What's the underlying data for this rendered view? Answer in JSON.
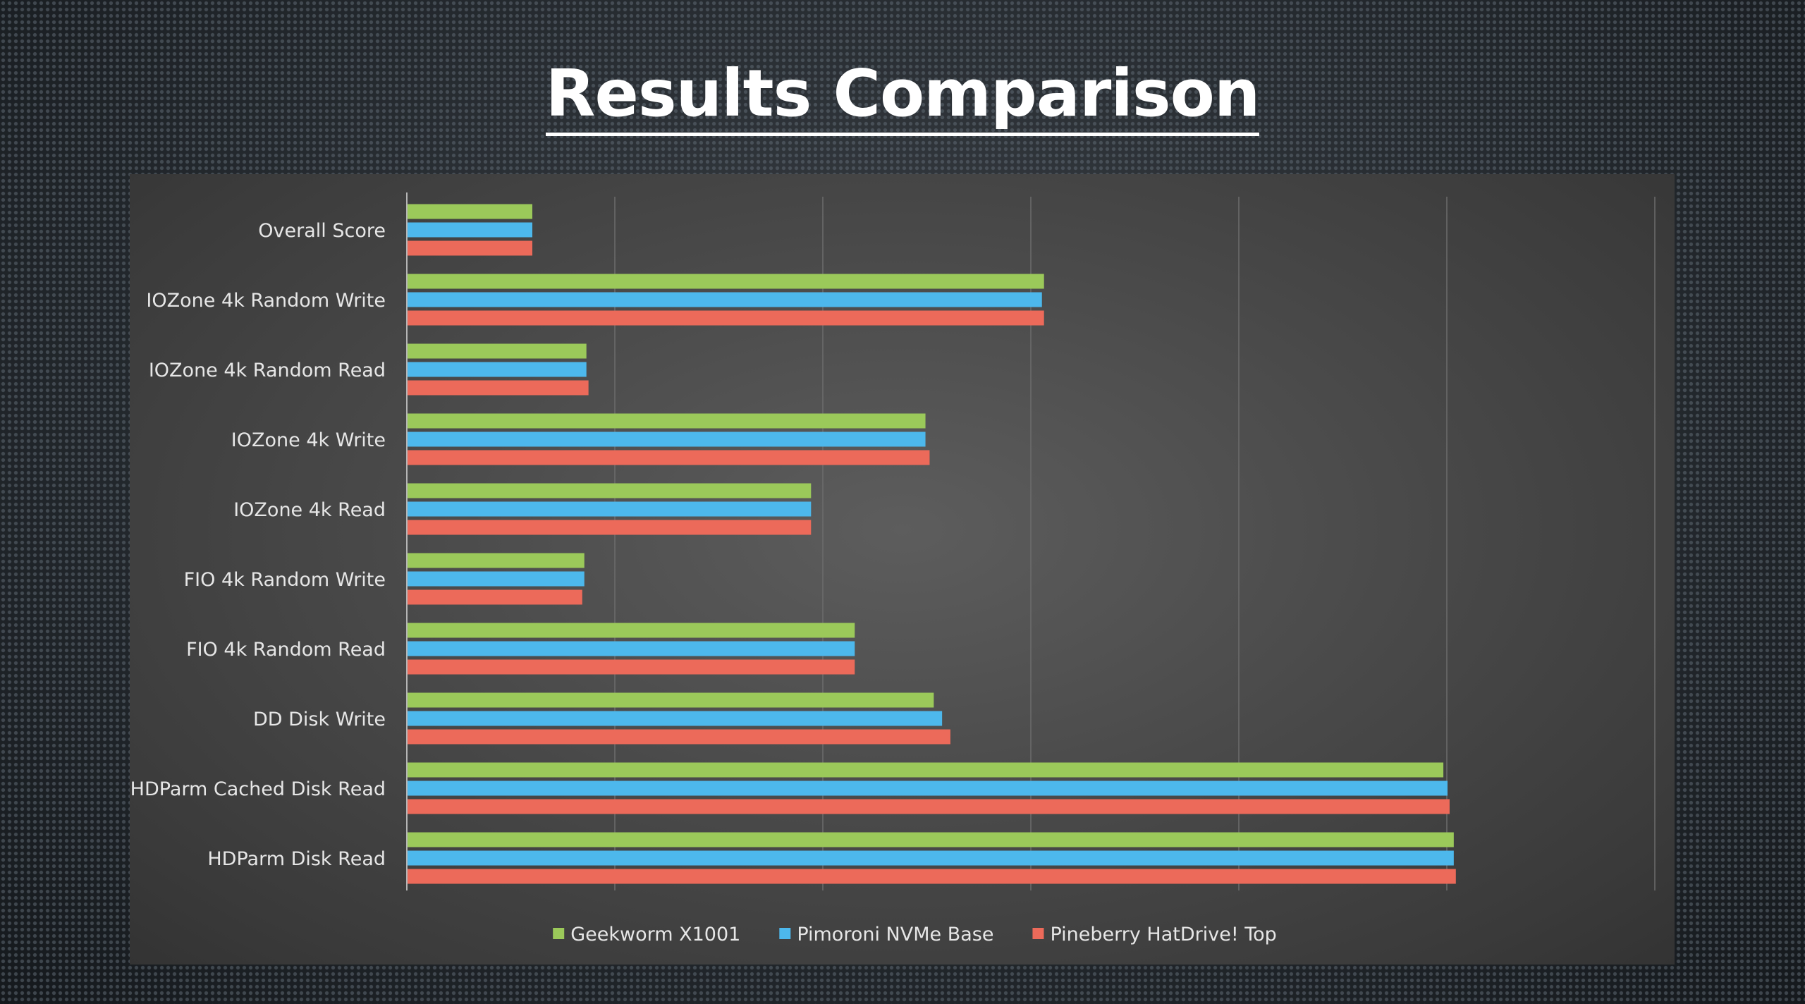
{
  "title": "Results Comparison",
  "chart_data": {
    "type": "bar",
    "orientation": "horizontal",
    "title": "Results Comparison",
    "xlabel": "",
    "ylabel": "",
    "xlim": [
      0,
      6
    ],
    "grid": true,
    "value_axis_labels_shown": false,
    "legend_position": "bottom",
    "categories": [
      "Overall Score",
      "IOZone 4k Random Write",
      "IOZone 4k Random Read",
      "IOZone 4k Write",
      "IOZone 4k Read",
      "FIO 4k Random Write",
      "FIO 4k Random Read",
      "DD Disk Write",
      "HDParm Cached Disk Read",
      "HDParm Disk Read"
    ],
    "series": [
      {
        "name": "Geekworm X1001",
        "color": "#9bc95a",
        "values": [
          0.6,
          3.06,
          0.86,
          2.49,
          1.94,
          0.85,
          2.15,
          2.53,
          4.98,
          5.03
        ]
      },
      {
        "name": "Pimoroni NVMe Base",
        "color": "#4db8ec",
        "values": [
          0.6,
          3.05,
          0.86,
          2.49,
          1.94,
          0.85,
          2.15,
          2.57,
          5.0,
          5.03
        ]
      },
      {
        "name": "Pineberry HatDrive! Top",
        "color": "#ec6a5a",
        "values": [
          0.6,
          3.06,
          0.87,
          2.51,
          1.94,
          0.84,
          2.15,
          2.61,
          5.01,
          5.04
        ]
      }
    ]
  }
}
